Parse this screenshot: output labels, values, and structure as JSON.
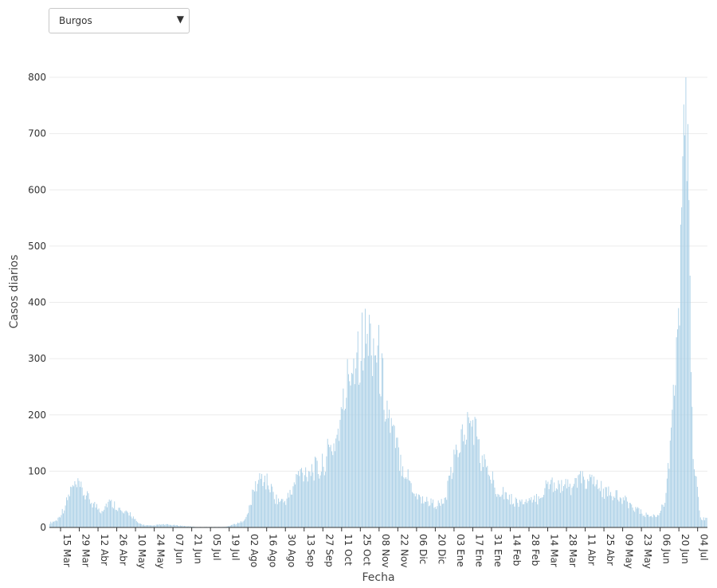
{
  "dropdown": {
    "selected": "Burgos"
  },
  "chart_data": {
    "type": "bar",
    "xlabel": "Fecha",
    "ylabel": "Casos diarios",
    "ylim": [
      0,
      800
    ],
    "yticks": [
      0,
      100,
      200,
      300,
      400,
      500,
      600,
      700,
      800
    ],
    "grid": true,
    "bar_color": "#a9cfe6",
    "xtick_labels": [
      "15 Mar",
      "29 Mar",
      "12 Abr",
      "26 Abr",
      "10 May",
      "24 May",
      "07 Jun",
      "21 Jun",
      "05 Jul",
      "19 Jul",
      "02 Ago",
      "16 Ago",
      "30 Ago",
      "13 Sep",
      "27 Sep",
      "11 Oct",
      "25 Oct",
      "08 Nov",
      "22 Nov",
      "06 Dic",
      "20 Dic",
      "03 Ene",
      "17 Ene",
      "31 Ene",
      "14 Feb",
      "28 Feb",
      "14 Mar",
      "28 Mar",
      "11 Abr",
      "25 Abr",
      "09 May",
      "23 May",
      "06 Jun",
      "20 Jun",
      "04 Jul"
    ],
    "weekly_values": [
      8,
      13,
      35,
      70,
      72,
      55,
      42,
      30,
      45,
      40,
      25,
      25,
      8,
      4,
      3,
      5,
      5,
      4,
      3,
      2,
      1,
      1,
      1,
      1,
      1,
      5,
      8,
      20,
      70,
      90,
      75,
      50,
      45,
      60,
      95,
      100,
      105,
      100,
      130,
      150,
      200,
      280,
      320,
      330,
      340,
      300,
      220,
      160,
      120,
      90,
      60,
      50,
      45,
      40,
      45,
      100,
      150,
      175,
      185,
      120,
      100,
      70,
      65,
      50,
      45,
      45,
      45,
      55,
      75,
      80,
      75,
      70,
      80,
      85,
      80,
      75,
      60,
      60,
      50,
      45,
      35,
      25,
      20,
      20,
      40,
      150,
      380,
      800,
      120,
      15
    ]
  }
}
